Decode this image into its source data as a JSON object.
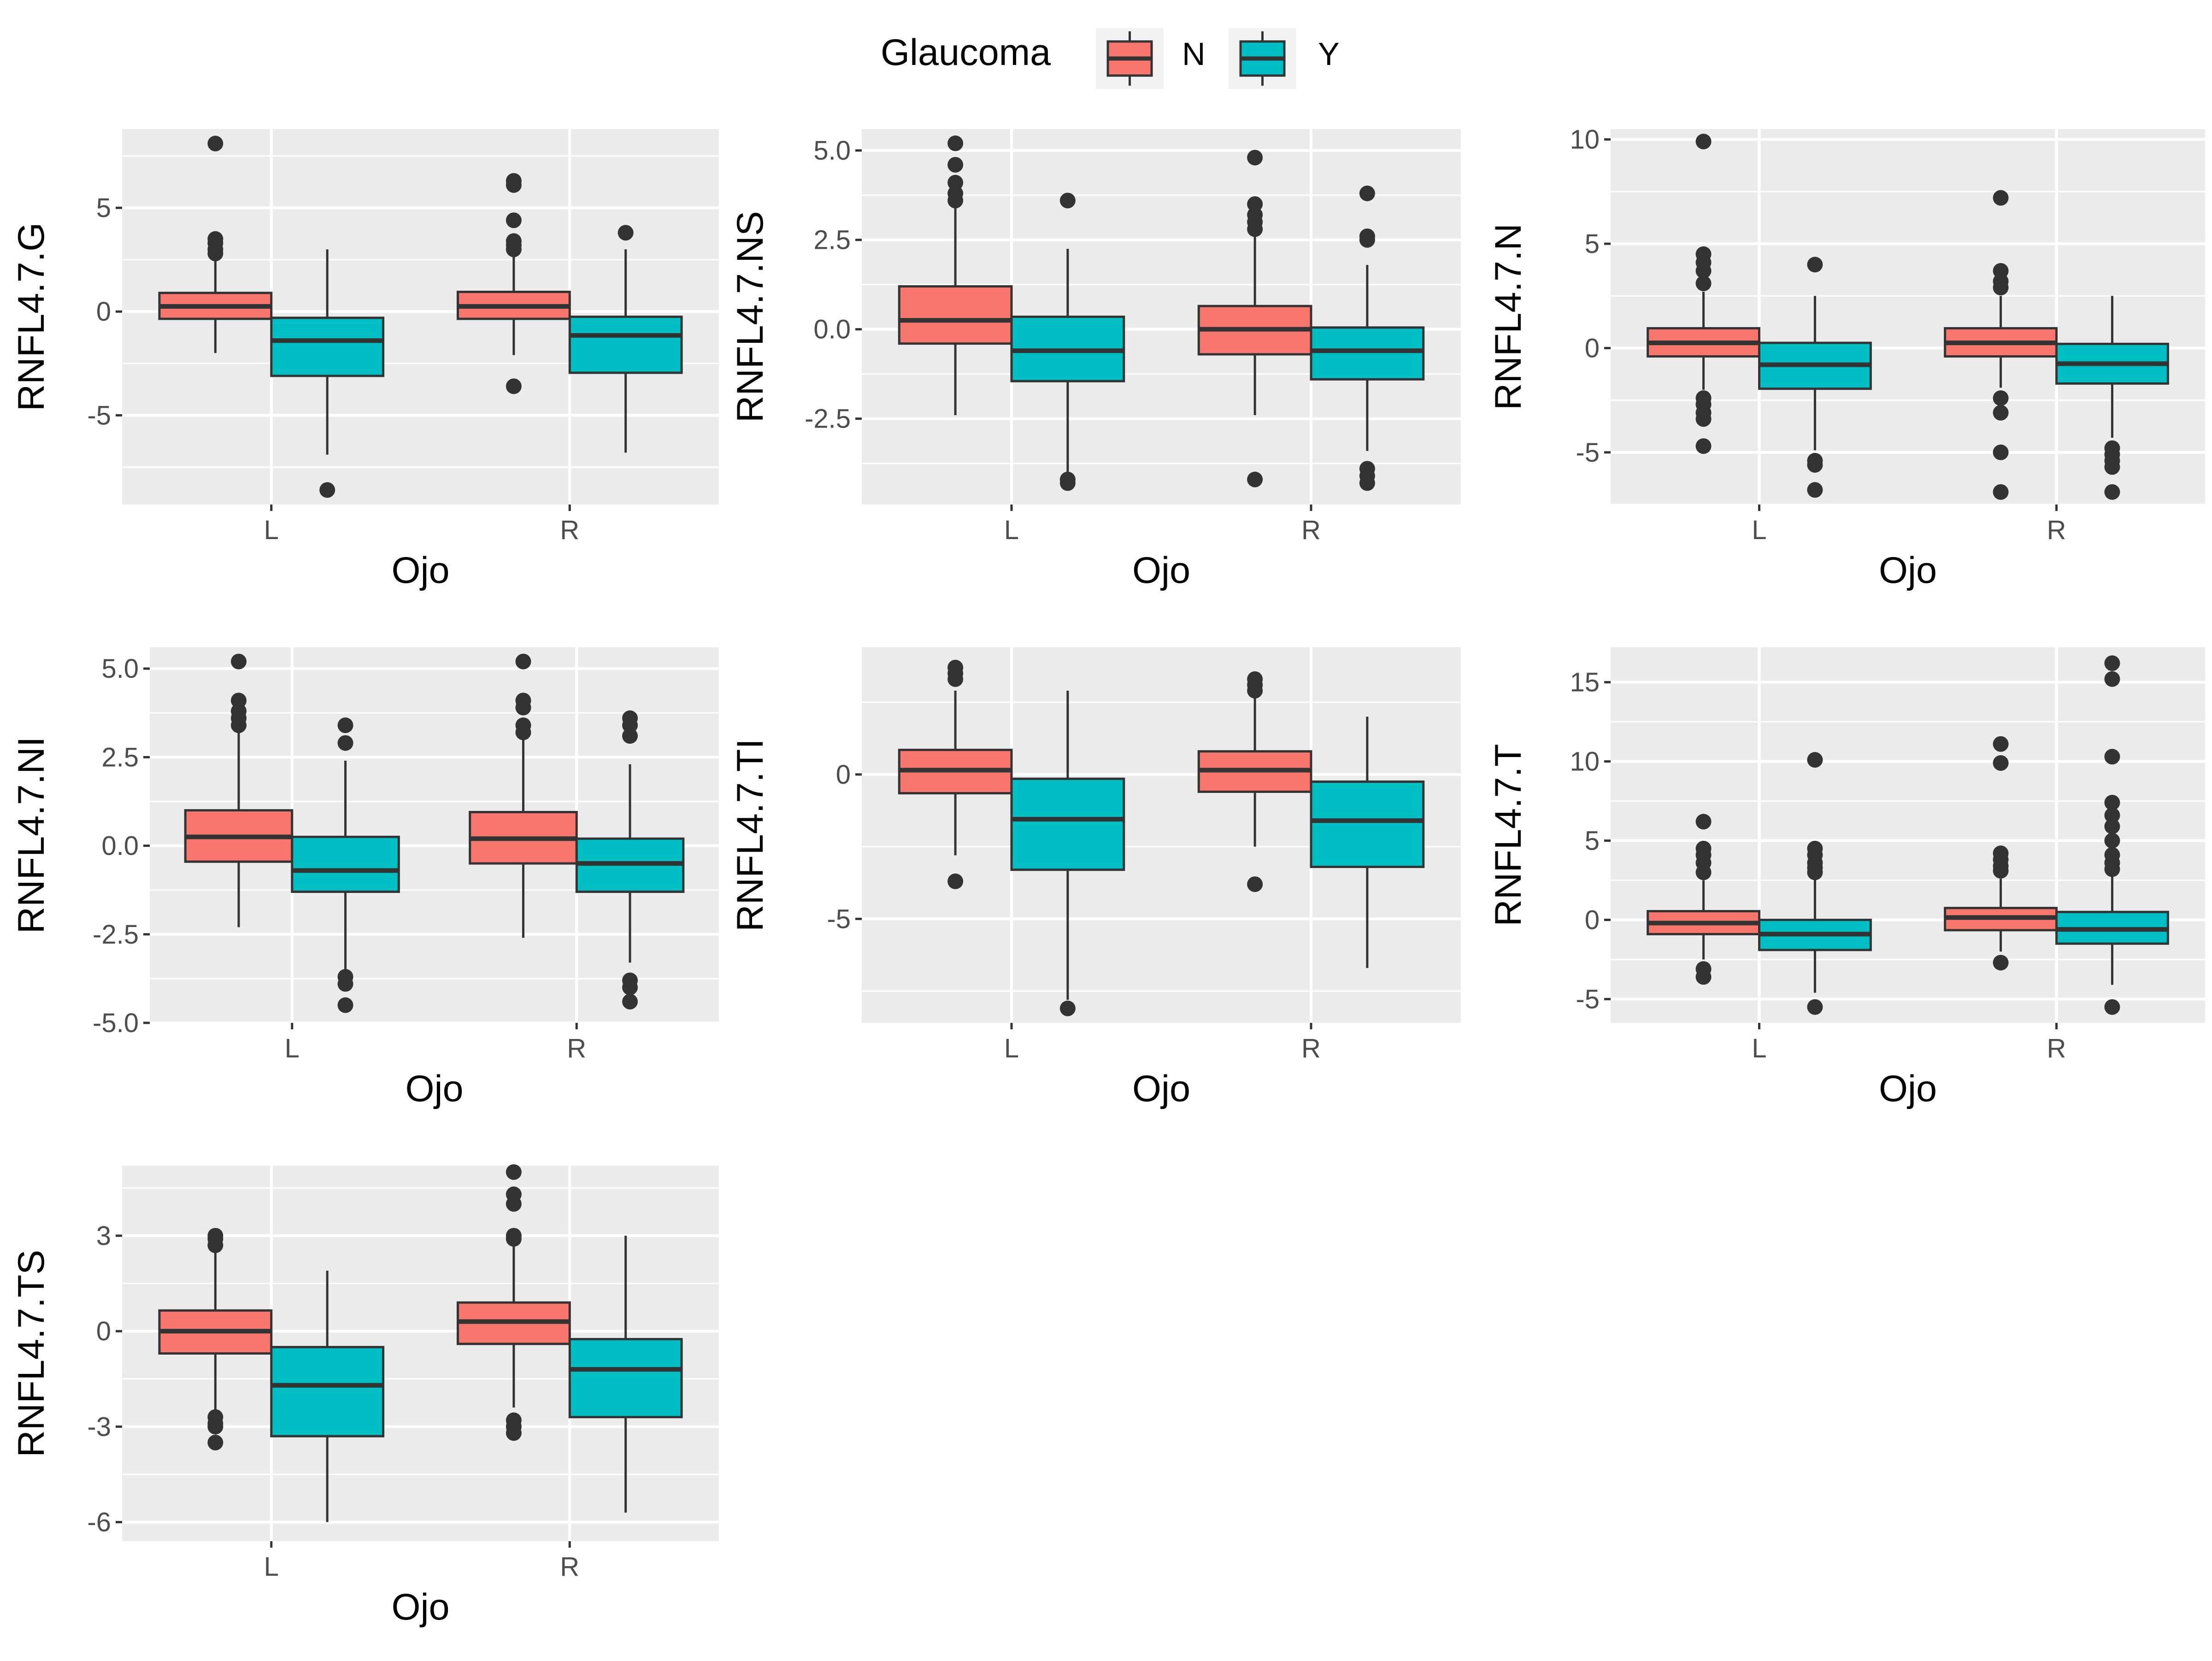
{
  "legend": {
    "title": "Glaucoma",
    "entries": [
      {
        "label": "N",
        "color": "#F8766D"
      },
      {
        "label": "Y",
        "color": "#00BFC4"
      }
    ]
  },
  "colors": {
    "panel_bg": "#EBEBEB",
    "grid": "#FFFFFF",
    "box_line": "#333333",
    "tick_text": "#4D4D4D",
    "axis_title": "#000000"
  },
  "chart_data": [
    {
      "type": "box",
      "title": "",
      "xlabel": "Ojo",
      "ylabel": "RNFL4.7.G",
      "categories": [
        "L",
        "R"
      ],
      "groups": [
        "N",
        "Y"
      ],
      "ylim": [
        -9.3,
        8.8
      ],
      "yticks": [
        5,
        0,
        -5
      ],
      "ytick_labels": [
        "5",
        "0",
        "-5"
      ],
      "boxes": [
        {
          "cat": "L",
          "group": "N",
          "whislo": -2.0,
          "q1": -0.35,
          "med": 0.25,
          "q3": 0.9,
          "whishi": 2.6,
          "outliers": [
            8.1,
            3.5,
            3.3,
            3.0,
            2.8
          ]
        },
        {
          "cat": "L",
          "group": "Y",
          "whislo": -6.9,
          "q1": -3.1,
          "med": -1.4,
          "q3": -0.3,
          "whishi": 3.0,
          "outliers": [
            -8.6
          ]
        },
        {
          "cat": "R",
          "group": "N",
          "whislo": -2.1,
          "q1": -0.35,
          "med": 0.25,
          "q3": 0.95,
          "whishi": 2.8,
          "outliers": [
            6.3,
            6.1,
            4.4,
            3.4,
            3.2,
            3.0,
            -3.6
          ]
        },
        {
          "cat": "R",
          "group": "Y",
          "whislo": -6.8,
          "q1": -2.95,
          "med": -1.15,
          "q3": -0.25,
          "whishi": 3.0,
          "outliers": [
            3.8
          ]
        }
      ]
    },
    {
      "type": "box",
      "title": "",
      "xlabel": "Ojo",
      "ylabel": "RNFL4.7.NS",
      "categories": [
        "L",
        "R"
      ],
      "groups": [
        "N",
        "Y"
      ],
      "ylim": [
        -4.9,
        5.6
      ],
      "yticks": [
        5.0,
        2.5,
        0.0,
        -2.5
      ],
      "ytick_labels": [
        "5.0",
        "2.5",
        "0.0",
        "-2.5"
      ],
      "boxes": [
        {
          "cat": "L",
          "group": "N",
          "whislo": -2.4,
          "q1": -0.4,
          "med": 0.25,
          "q3": 1.2,
          "whishi": 3.4,
          "outliers": [
            5.2,
            4.6,
            4.1,
            3.8,
            3.6
          ]
        },
        {
          "cat": "L",
          "group": "Y",
          "whislo": -4.1,
          "q1": -1.45,
          "med": -0.6,
          "q3": 0.35,
          "whishi": 2.25,
          "outliers": [
            3.6,
            -4.2,
            -4.3
          ]
        },
        {
          "cat": "R",
          "group": "N",
          "whislo": -2.4,
          "q1": -0.7,
          "med": 0.0,
          "q3": 0.65,
          "whishi": 2.6,
          "outliers": [
            4.8,
            3.5,
            3.2,
            3.0,
            2.8,
            -4.2
          ]
        },
        {
          "cat": "R",
          "group": "Y",
          "whislo": -3.4,
          "q1": -1.4,
          "med": -0.6,
          "q3": 0.05,
          "whishi": 1.8,
          "outliers": [
            3.8,
            2.6,
            2.5,
            -3.9,
            -4.1,
            -4.3
          ]
        }
      ]
    },
    {
      "type": "box",
      "title": "",
      "xlabel": "Ojo",
      "ylabel": "RNFL4.7.N",
      "categories": [
        "L",
        "R"
      ],
      "groups": [
        "N",
        "Y"
      ],
      "ylim": [
        -7.5,
        10.5
      ],
      "yticks": [
        10,
        5,
        0,
        -5
      ],
      "ytick_labels": [
        "10",
        "5",
        "0",
        "-5"
      ],
      "boxes": [
        {
          "cat": "L",
          "group": "N",
          "whislo": -2.0,
          "q1": -0.4,
          "med": 0.25,
          "q3": 0.95,
          "whishi": 2.7,
          "outliers": [
            9.9,
            4.5,
            4.1,
            3.7,
            3.1,
            -2.4,
            -2.7,
            -3.1,
            -3.4,
            -4.7
          ]
        },
        {
          "cat": "L",
          "group": "Y",
          "whislo": -4.9,
          "q1": -1.95,
          "med": -0.8,
          "q3": 0.25,
          "whishi": 2.5,
          "outliers": [
            4.0,
            -5.4,
            -5.6,
            -6.8
          ]
        },
        {
          "cat": "R",
          "group": "N",
          "whislo": -1.9,
          "q1": -0.4,
          "med": 0.25,
          "q3": 0.95,
          "whishi": 2.5,
          "outliers": [
            7.2,
            3.7,
            3.2,
            2.9,
            -2.4,
            -3.1,
            -5.0,
            -6.9
          ]
        },
        {
          "cat": "R",
          "group": "Y",
          "whislo": -4.3,
          "q1": -1.7,
          "med": -0.75,
          "q3": 0.2,
          "whishi": 2.5,
          "outliers": [
            -4.8,
            -5.1,
            -5.4,
            -5.7,
            -6.9
          ]
        }
      ]
    },
    {
      "type": "box",
      "title": "",
      "xlabel": "Ojo",
      "ylabel": "RNFL4.7.NI",
      "categories": [
        "L",
        "R"
      ],
      "groups": [
        "N",
        "Y"
      ],
      "ylim": [
        -5.0,
        5.6
      ],
      "yticks": [
        5.0,
        2.5,
        0.0,
        -2.5,
        -5.0
      ],
      "ytick_labels": [
        "5.0",
        "2.5",
        "0.0",
        "-2.5",
        "-5.0"
      ],
      "boxes": [
        {
          "cat": "L",
          "group": "N",
          "whislo": -2.3,
          "q1": -0.45,
          "med": 0.25,
          "q3": 1.0,
          "whishi": 3.2,
          "outliers": [
            5.2,
            4.1,
            3.8,
            3.6,
            3.4
          ]
        },
        {
          "cat": "L",
          "group": "Y",
          "whislo": -3.6,
          "q1": -1.3,
          "med": -0.7,
          "q3": 0.25,
          "whishi": 2.4,
          "outliers": [
            3.4,
            2.9,
            -3.7,
            -3.9,
            -4.5
          ]
        },
        {
          "cat": "R",
          "group": "N",
          "whislo": -2.6,
          "q1": -0.5,
          "med": 0.2,
          "q3": 0.95,
          "whishi": 3.0,
          "outliers": [
            5.2,
            4.1,
            3.9,
            3.4,
            3.2
          ]
        },
        {
          "cat": "R",
          "group": "Y",
          "whislo": -3.3,
          "q1": -1.3,
          "med": -0.5,
          "q3": 0.2,
          "whishi": 2.3,
          "outliers": [
            3.6,
            3.4,
            3.1,
            -3.8,
            -4.0,
            -4.4
          ]
        }
      ]
    },
    {
      "type": "box",
      "title": "",
      "xlabel": "Ojo",
      "ylabel": "RNFL4.7.TI",
      "categories": [
        "L",
        "R"
      ],
      "groups": [
        "N",
        "Y"
      ],
      "ylim": [
        -8.6,
        4.4
      ],
      "yticks": [
        0,
        -5
      ],
      "ytick_labels": [
        "0",
        "-5"
      ],
      "boxes": [
        {
          "cat": "L",
          "group": "N",
          "whislo": -2.8,
          "q1": -0.65,
          "med": 0.15,
          "q3": 0.85,
          "whishi": 2.9,
          "outliers": [
            3.7,
            3.5,
            3.3,
            -3.7
          ]
        },
        {
          "cat": "L",
          "group": "Y",
          "whislo": -7.8,
          "q1": -3.3,
          "med": -1.55,
          "q3": -0.15,
          "whishi": 2.9,
          "outliers": [
            -8.1
          ]
        },
        {
          "cat": "R",
          "group": "N",
          "whislo": -2.5,
          "q1": -0.6,
          "med": 0.15,
          "q3": 0.8,
          "whishi": 2.7,
          "outliers": [
            3.3,
            3.1,
            2.9,
            -3.8
          ]
        },
        {
          "cat": "R",
          "group": "Y",
          "whislo": -6.7,
          "q1": -3.2,
          "med": -1.6,
          "q3": -0.25,
          "whishi": 2.0,
          "outliers": []
        }
      ]
    },
    {
      "type": "box",
      "title": "",
      "xlabel": "Ojo",
      "ylabel": "RNFL4.7.T",
      "categories": [
        "L",
        "R"
      ],
      "groups": [
        "N",
        "Y"
      ],
      "ylim": [
        -6.5,
        17.2
      ],
      "yticks": [
        15,
        10,
        5,
        0,
        -5
      ],
      "ytick_labels": [
        "15",
        "10",
        "5",
        "0",
        "-5"
      ],
      "boxes": [
        {
          "cat": "L",
          "group": "N",
          "whislo": -2.5,
          "q1": -0.9,
          "med": -0.2,
          "q3": 0.55,
          "whishi": 2.5,
          "outliers": [
            6.2,
            4.5,
            4.1,
            3.6,
            3.0,
            -3.1,
            -3.6
          ]
        },
        {
          "cat": "L",
          "group": "Y",
          "whislo": -4.6,
          "q1": -1.9,
          "med": -0.9,
          "q3": 0.0,
          "whishi": 2.8,
          "outliers": [
            10.1,
            4.5,
            4.1,
            3.6,
            3.3,
            3.0,
            -5.5
          ]
        },
        {
          "cat": "R",
          "group": "N",
          "whislo": -2.0,
          "q1": -0.65,
          "med": 0.15,
          "q3": 0.75,
          "whishi": 2.6,
          "outliers": [
            11.1,
            9.9,
            4.2,
            3.8,
            3.4,
            3.1,
            -2.7
          ]
        },
        {
          "cat": "R",
          "group": "Y",
          "whislo": -4.1,
          "q1": -1.5,
          "med": -0.6,
          "q3": 0.5,
          "whishi": 3.0,
          "outliers": [
            16.2,
            15.2,
            10.3,
            7.4,
            6.6,
            5.9,
            5.0,
            4.1,
            3.6,
            3.2,
            -5.5
          ]
        }
      ]
    },
    {
      "type": "box",
      "title": "",
      "xlabel": "Ojo",
      "ylabel": "RNFL4.7.TS",
      "categories": [
        "L",
        "R"
      ],
      "groups": [
        "N",
        "Y"
      ],
      "ylim": [
        -6.6,
        5.2
      ],
      "yticks": [
        3,
        0,
        -3,
        -6
      ],
      "ytick_labels": [
        "3",
        "0",
        "-3",
        "-6"
      ],
      "boxes": [
        {
          "cat": "L",
          "group": "N",
          "whislo": -2.5,
          "q1": -0.7,
          "med": 0.0,
          "q3": 0.65,
          "whishi": 2.5,
          "outliers": [
            3.0,
            2.9,
            2.7,
            -2.7,
            -2.9,
            -3.0,
            -3.5
          ]
        },
        {
          "cat": "L",
          "group": "Y",
          "whislo": -6.0,
          "q1": -3.3,
          "med": -1.7,
          "q3": -0.5,
          "whishi": 1.9,
          "outliers": []
        },
        {
          "cat": "R",
          "group": "N",
          "whislo": -2.4,
          "q1": -0.4,
          "med": 0.3,
          "q3": 0.9,
          "whishi": 2.7,
          "outliers": [
            5.0,
            4.3,
            4.0,
            3.0,
            2.9,
            -2.8,
            -3.0,
            -3.2
          ]
        },
        {
          "cat": "R",
          "group": "Y",
          "whislo": -5.7,
          "q1": -2.7,
          "med": -1.2,
          "q3": -0.25,
          "whishi": 3.0,
          "outliers": []
        }
      ]
    }
  ]
}
